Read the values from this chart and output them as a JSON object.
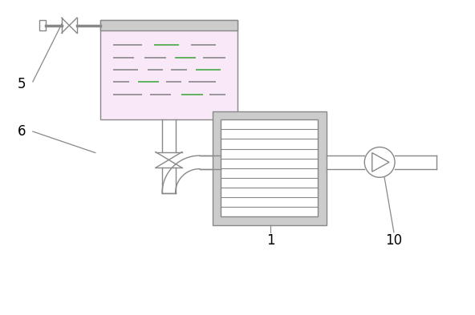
{
  "bg_color": "#ffffff",
  "line_color": "#888888",
  "box_fill": "#f8e8f8",
  "hx_frame_color": "#aaaaaa",
  "hx_line_color": "#aaaaaa",
  "dash_color1": "#888888",
  "dash_color2": "#44aa44",
  "fig_width": 5.92,
  "fig_height": 3.93,
  "dpi": 100,
  "label_5": "5",
  "label_6": "6",
  "label_1": "1",
  "label_10": "10"
}
